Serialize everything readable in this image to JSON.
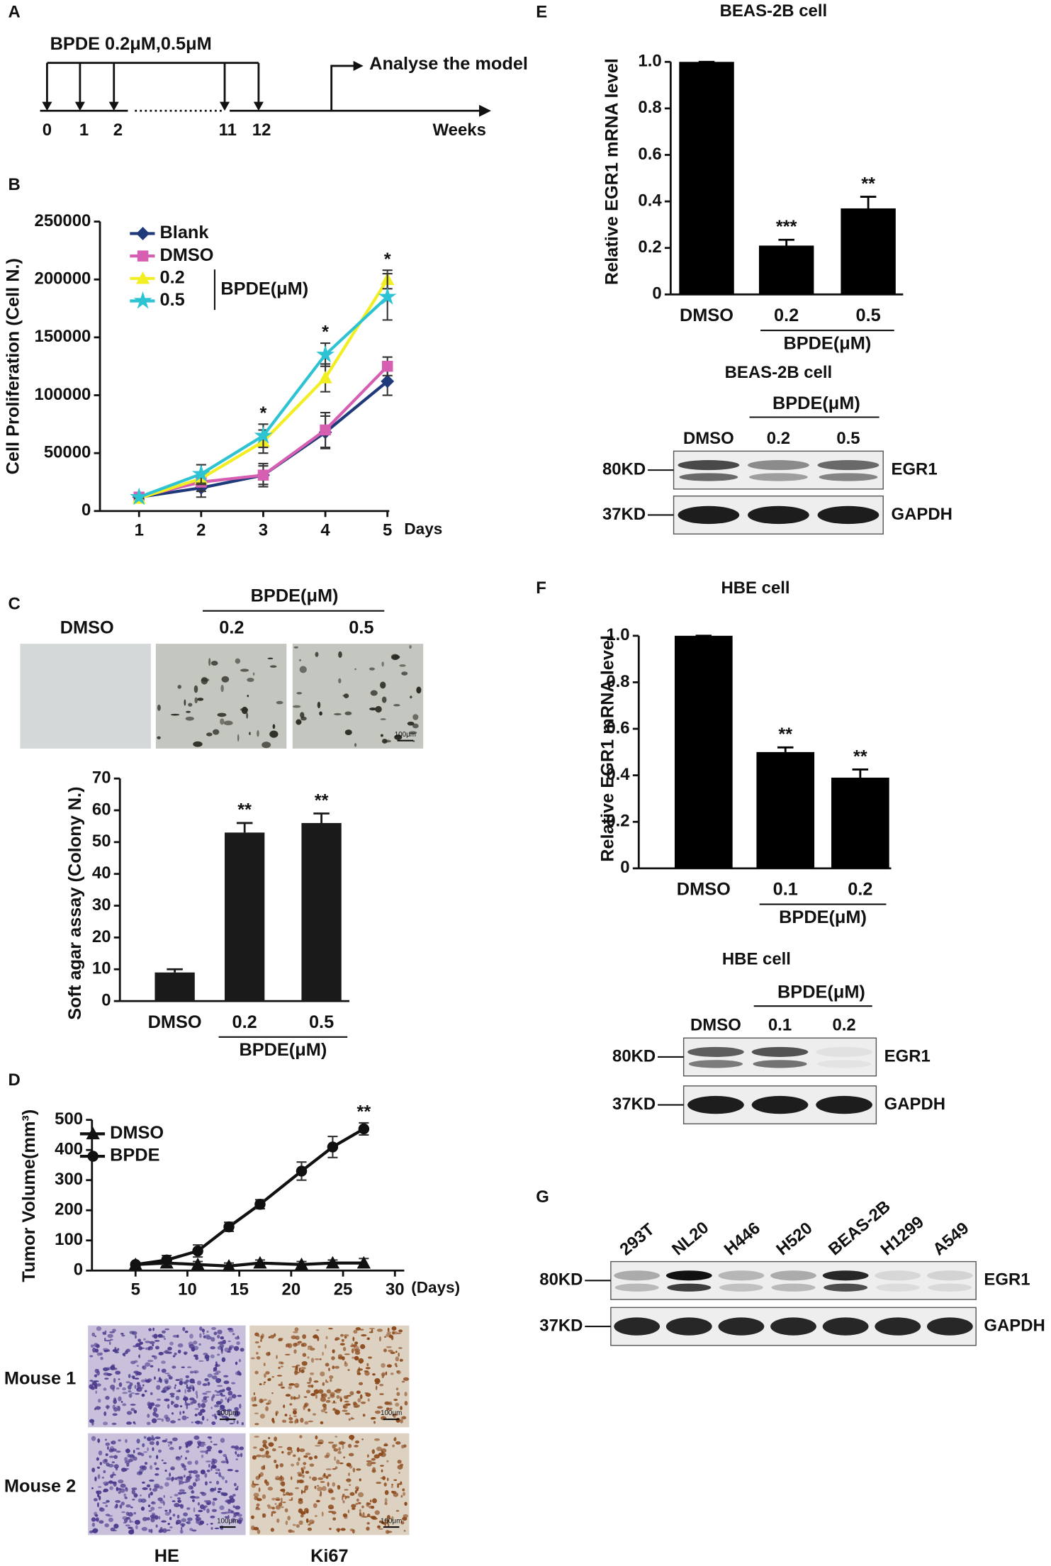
{
  "panel_labels": [
    "A",
    "B",
    "C",
    "D",
    "E",
    "F",
    "G"
  ],
  "timeline": {
    "title": "BPDE 0.2μM,0.5μM",
    "ticks": [
      "0",
      "1",
      "2",
      "11",
      "12"
    ],
    "axis_label": "Weeks",
    "annotation": "Analyse the model"
  },
  "chart_data": [
    {
      "type": "line",
      "x_label": "Days",
      "y_label": "Cell Proliferation (Cell N.)",
      "x": [
        1,
        2,
        3,
        4,
        5
      ],
      "xlim": [
        0.37,
        5.03
      ],
      "xticks": [
        1,
        2,
        3,
        4,
        5
      ],
      "ylim": [
        0,
        250000
      ],
      "yticks": [
        0,
        50000,
        100000,
        150000,
        200000,
        250000
      ],
      "series": [
        {
          "name": "Blank",
          "color": "#1f3a7a",
          "marker": "diamond",
          "values": [
            12000,
            20000,
            31000,
            68000,
            112000
          ],
          "errors": [
            1000,
            8000,
            8000,
            14000,
            12000
          ]
        },
        {
          "name": "DMSO",
          "color": "#d65fb2",
          "marker": "square",
          "values": [
            12000,
            25000,
            31000,
            70000,
            125000
          ],
          "errors": [
            1000,
            8000,
            10000,
            15000,
            8000
          ]
        },
        {
          "name": "0.2",
          "color": "#f2ee22",
          "marker": "triangle",
          "values": [
            11000,
            28000,
            60000,
            115000,
            200000
          ],
          "errors": [
            1000,
            5000,
            10000,
            12000,
            8000
          ]
        },
        {
          "name": "0.5",
          "color": "#2ec3d3",
          "marker": "star",
          "values": [
            12000,
            32000,
            65000,
            135000,
            185000
          ],
          "errors": [
            1000,
            8000,
            10000,
            10000,
            20000
          ]
        }
      ],
      "legend_group_label": "BPDE(μM)",
      "significance": [
        null,
        null,
        "*",
        "*",
        "*"
      ]
    },
    {
      "type": "bar",
      "y_label": "Soft agar assay (Colony N.)",
      "categories": [
        "DMSO",
        "0.2",
        "0.5"
      ],
      "values": [
        9,
        53,
        56
      ],
      "errors": [
        1,
        3,
        3
      ],
      "color": "#1a1a1a",
      "ylim": [
        0,
        70
      ],
      "yticks": [
        0,
        10,
        20,
        30,
        40,
        50,
        60,
        70
      ],
      "group_label": "BPDE(μM)",
      "significance": [
        null,
        "**",
        "**"
      ]
    },
    {
      "type": "line",
      "x_label": "(Days)",
      "y_label": "Tumor Volume(mm³)",
      "x": [
        5,
        8,
        11,
        14,
        17,
        21,
        24,
        27
      ],
      "xlim": [
        0.8,
        30.9
      ],
      "xticks": [
        5,
        10,
        15,
        20,
        25,
        30
      ],
      "ylim": [
        0,
        500
      ],
      "yticks": [
        0,
        100,
        200,
        300,
        400,
        500
      ],
      "series": [
        {
          "name": "DMSO",
          "color": "#111111",
          "marker": "triangle",
          "values": [
            20,
            25,
            20,
            15,
            25,
            20,
            25,
            25
          ],
          "errors": [
            5,
            10,
            10,
            10,
            10,
            10,
            10,
            15
          ]
        },
        {
          "name": "BPDE",
          "color": "#111111",
          "marker": "circle",
          "values": [
            20,
            35,
            65,
            145,
            220,
            330,
            410,
            470
          ],
          "errors": [
            5,
            15,
            20,
            15,
            15,
            30,
            35,
            20
          ]
        }
      ],
      "significance": [
        null,
        null,
        null,
        null,
        null,
        null,
        null,
        "**"
      ]
    },
    {
      "type": "bar",
      "title": "BEAS-2B cell",
      "y_label": "Relative EGR1 mRNA level",
      "categories": [
        "DMSO",
        "0.2",
        "0.5"
      ],
      "values": [
        1.0,
        0.21,
        0.37
      ],
      "errors": [
        0,
        0.025,
        0.05
      ],
      "color": "#000000",
      "ylim": [
        0,
        1.0
      ],
      "yticks": [
        0,
        0.2,
        0.4,
        0.6,
        0.8,
        {
          "value": 1.0,
          "label": "1.0"
        }
      ],
      "group_label": "BPDE(μM)",
      "significance": [
        null,
        "***",
        "**"
      ]
    },
    {
      "type": "bar",
      "title": "HBE cell",
      "y_label": "Relative EGR1 mRNA level",
      "categories": [
        "DMSO",
        "0.1",
        "0.2"
      ],
      "values": [
        1.0,
        0.5,
        0.39
      ],
      "errors": [
        0,
        0.02,
        0.035
      ],
      "color": "#000000",
      "ylim": [
        0,
        1.0
      ],
      "yticks": [
        0,
        0.2,
        0.4,
        0.6,
        0.8,
        {
          "value": 1.0,
          "label": "1.0"
        }
      ],
      "group_label": "BPDE(μM)",
      "significance": [
        null,
        "**",
        "**"
      ]
    }
  ],
  "micrographs": [
    {
      "group_label": "BPDE(μM)",
      "columns": [
        "DMSO",
        "0.2",
        "0.5"
      ],
      "scale_bar": "100μm"
    },
    {
      "rows": [
        "Mouse 1",
        "Mouse 2"
      ],
      "columns": [
        "HE",
        "Ki67"
      ],
      "scale_bar": "100μm"
    }
  ],
  "blots": [
    {
      "title": "BEAS-2B cell",
      "group_label": "BPDE(μM)",
      "lanes": [
        "DMSO",
        "0.2",
        "0.5"
      ],
      "rows": [
        {
          "marker": "80KD",
          "protein": "EGR1"
        },
        {
          "marker": "37KD",
          "protein": "GAPDH"
        }
      ]
    },
    {
      "title": "HBE cell",
      "group_label": "BPDE(μM)",
      "lanes": [
        "DMSO",
        "0.1",
        "0.2"
      ],
      "rows": [
        {
          "marker": "80KD",
          "protein": "EGR1"
        },
        {
          "marker": "37KD",
          "protein": "GAPDH"
        }
      ]
    },
    {
      "lanes": [
        "293T",
        "NL20",
        "H446",
        "H520",
        "BEAS-2B",
        "H1299",
        "A549"
      ],
      "rows": [
        {
          "marker": "80KD",
          "protein": "EGR1"
        },
        {
          "marker": "37KD",
          "protein": "GAPDH"
        }
      ]
    }
  ]
}
